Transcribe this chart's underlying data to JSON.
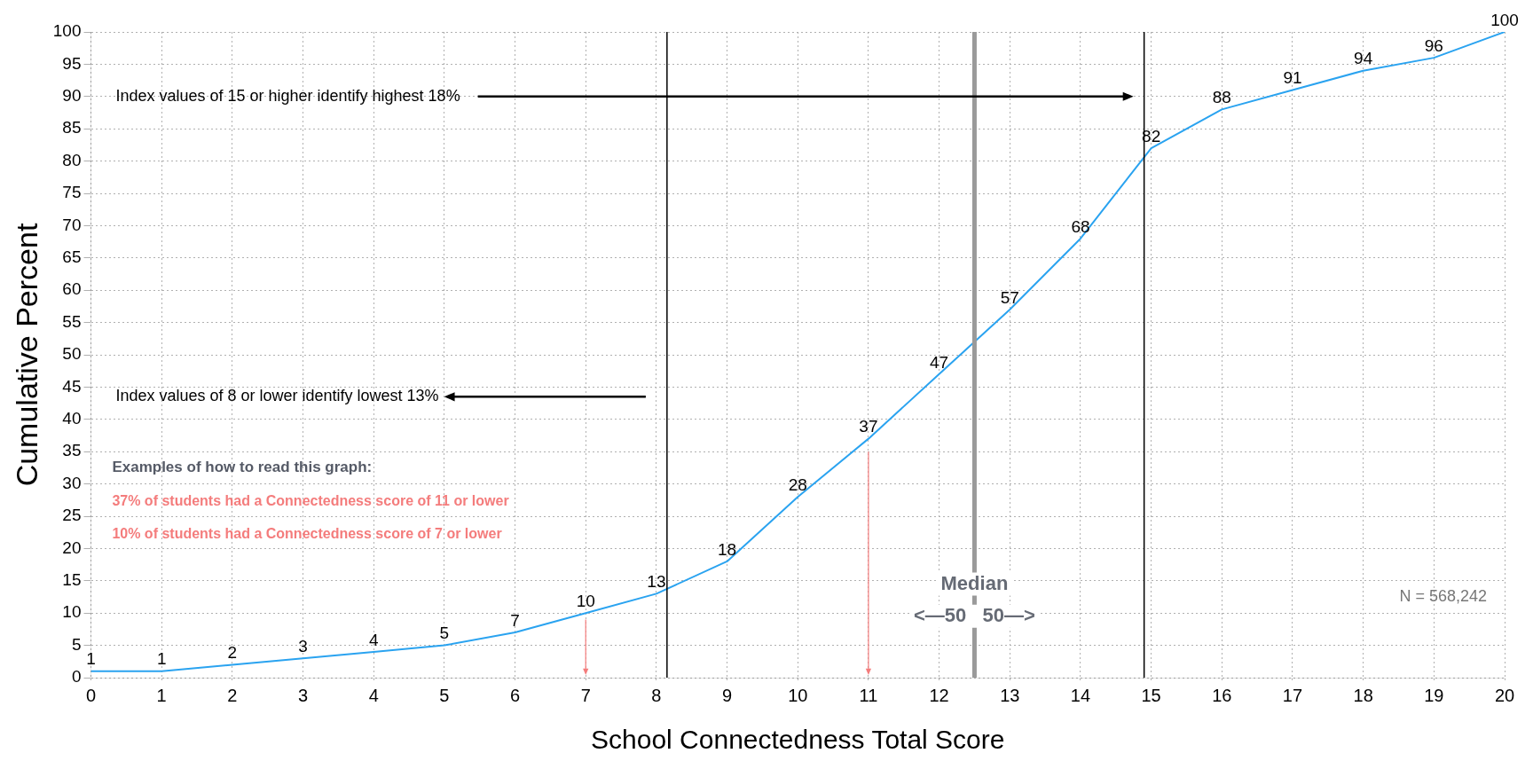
{
  "chart_data": {
    "type": "line",
    "xlabel": "School Connectedness Total Score",
    "ylabel": "Cumulative Percent",
    "x": [
      0,
      1,
      2,
      3,
      4,
      5,
      6,
      7,
      8,
      9,
      10,
      11,
      12,
      13,
      14,
      15,
      16,
      17,
      18,
      19,
      20
    ],
    "series": [
      {
        "color": "#2aa3f0",
        "values": [
          1,
          1,
          2,
          3,
          4,
          5,
          7,
          10,
          13,
          18,
          28,
          37,
          47,
          57,
          68,
          82,
          88,
          91,
          94,
          96,
          100
        ]
      }
    ],
    "xlim": [
      0,
      20
    ],
    "xticks": [
      0,
      1,
      2,
      3,
      4,
      5,
      6,
      7,
      8,
      9,
      10,
      11,
      12,
      13,
      14,
      15,
      16,
      17,
      18,
      19,
      20
    ],
    "ylim": [
      0,
      100
    ],
    "yticks": [
      0,
      5,
      10,
      15,
      20,
      25,
      30,
      35,
      40,
      45,
      50,
      55,
      60,
      65,
      70,
      75,
      80,
      85,
      90,
      95,
      100
    ],
    "grid": true,
    "legend": false,
    "marker": "none",
    "line_style": "solid",
    "data_labels": true,
    "ref_lines": [
      {
        "axis": "x",
        "value": 8.15,
        "color": "#000000"
      },
      {
        "axis": "x",
        "value": 12.5,
        "label": "Median",
        "color": "#9a9a9a"
      },
      {
        "axis": "x",
        "value": 14.9,
        "color": "#000000"
      }
    ],
    "annotations": [
      "Index values of 15 or higher identify highest 18%",
      "Index values of 8 or lower identify lowest 13%",
      "Examples of how to read this graph:",
      "37% of students had a Connectedness score of 11 or lower",
      "10% of students had a Connectedness score of 7 or lower",
      "<—50   50—>",
      "N = 568,242"
    ]
  }
}
